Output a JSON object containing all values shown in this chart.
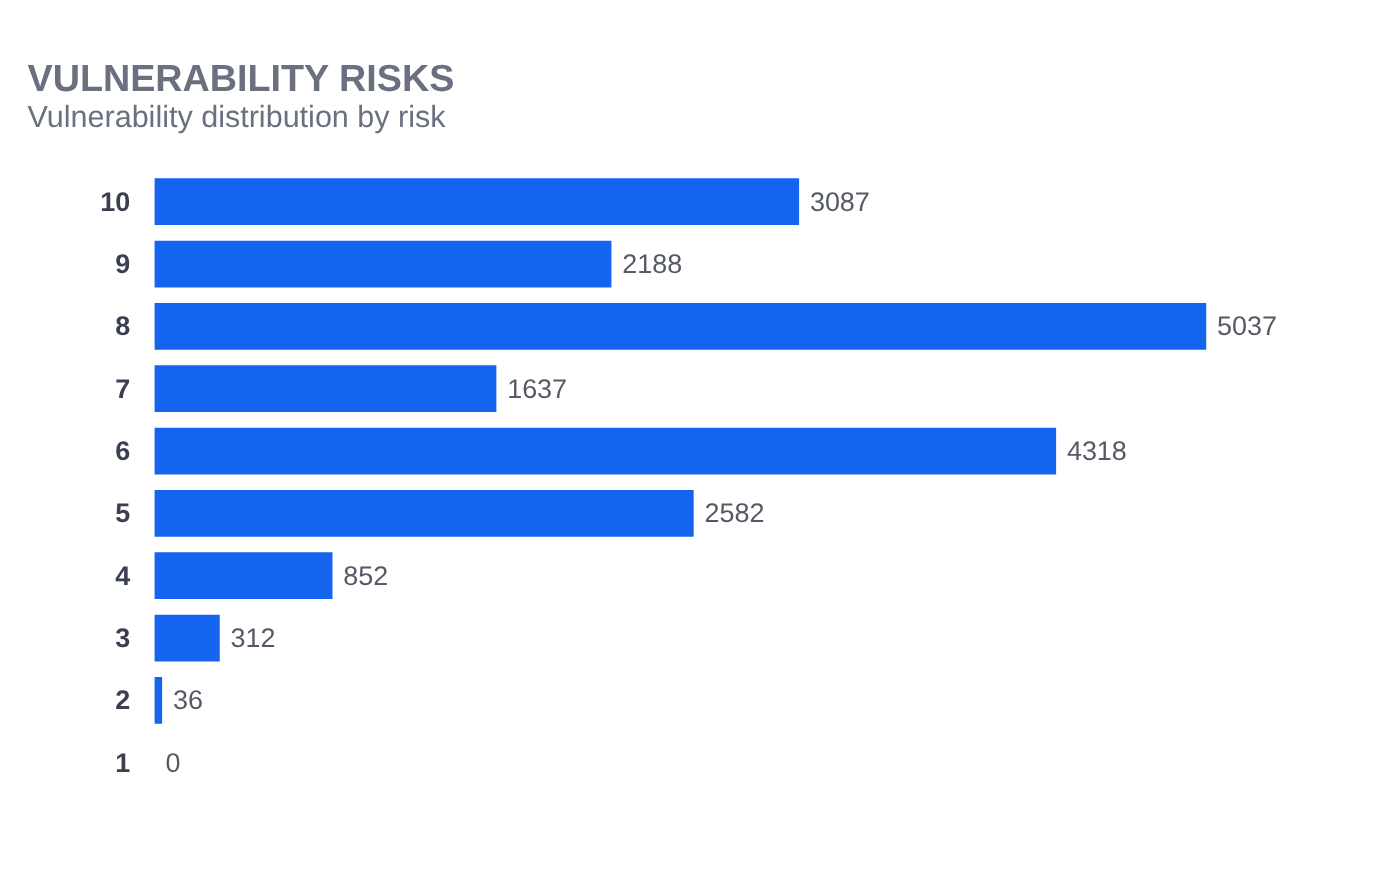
{
  "chart_data": {
    "type": "bar",
    "orientation": "horizontal",
    "title": "VULNERABILITY RISKS",
    "subtitle": "Vulnerability distribution by risk",
    "categories": [
      "10",
      "9",
      "8",
      "7",
      "6",
      "5",
      "4",
      "3",
      "2",
      "1"
    ],
    "values": [
      3087,
      2188,
      5037,
      1637,
      4318,
      2582,
      852,
      312,
      36,
      0
    ],
    "color": "#1464f0",
    "data_labels": true,
    "tick_labels": "y"
  }
}
